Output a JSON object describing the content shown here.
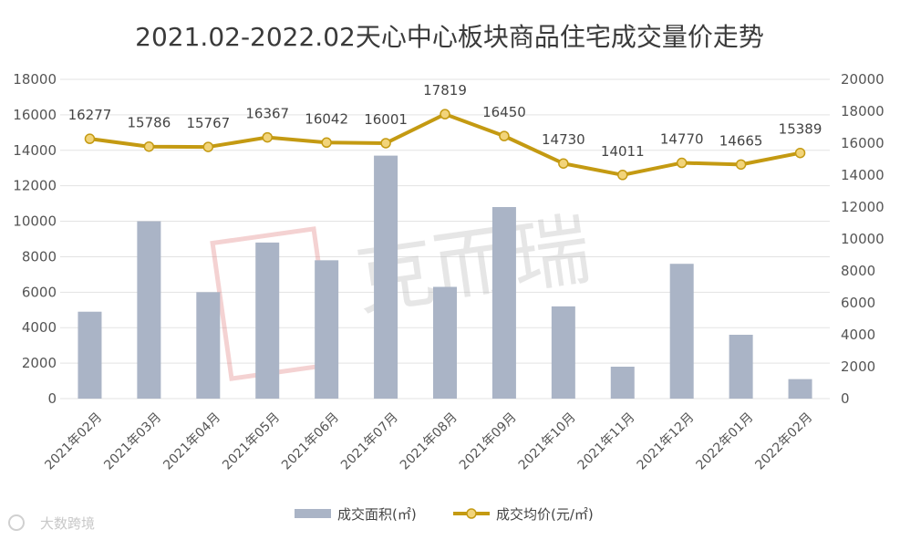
{
  "chart_data": {
    "type": "bar+line",
    "title": "2021.02-2022.02天心中心板块商品住宅成交量价走势",
    "categories": [
      "2021年02月",
      "2021年03月",
      "2021年04月",
      "2021年05月",
      "2021年06月",
      "2021年07月",
      "2021年08月",
      "2021年09月",
      "2021年10月",
      "2021年11月",
      "2021年12月",
      "2022年01月",
      "2022年02月"
    ],
    "series": [
      {
        "name": "成交面积(㎡)",
        "type": "bar",
        "axis": "left",
        "color": "#aab4c6",
        "values": [
          4900,
          10000,
          6000,
          8800,
          7800,
          13700,
          6300,
          10800,
          5200,
          1800,
          7600,
          3600,
          1100
        ]
      },
      {
        "name": "成交均价(元/㎡)",
        "type": "line",
        "axis": "right",
        "color": "#c49a12",
        "marker_color": "#f2d47a",
        "values": [
          16277,
          15786,
          15767,
          16367,
          16042,
          16001,
          17819,
          16450,
          14730,
          14011,
          14770,
          14665,
          15389
        ]
      }
    ],
    "y_left": {
      "ylim": [
        0,
        18000
      ],
      "ticks": [
        "0",
        "2000",
        "4000",
        "6000",
        "8000",
        "10000",
        "12000",
        "14000",
        "16000",
        "18000"
      ]
    },
    "y_right": {
      "ylim": [
        0,
        20000
      ],
      "ticks": [
        "0",
        "2000",
        "4000",
        "6000",
        "8000",
        "10000",
        "12000",
        "14000",
        "16000",
        "18000",
        "20000"
      ]
    },
    "grid": true,
    "legend_position": "bottom"
  },
  "watermark": {
    "brand": "克而瑞",
    "corner": "大数跨境"
  }
}
